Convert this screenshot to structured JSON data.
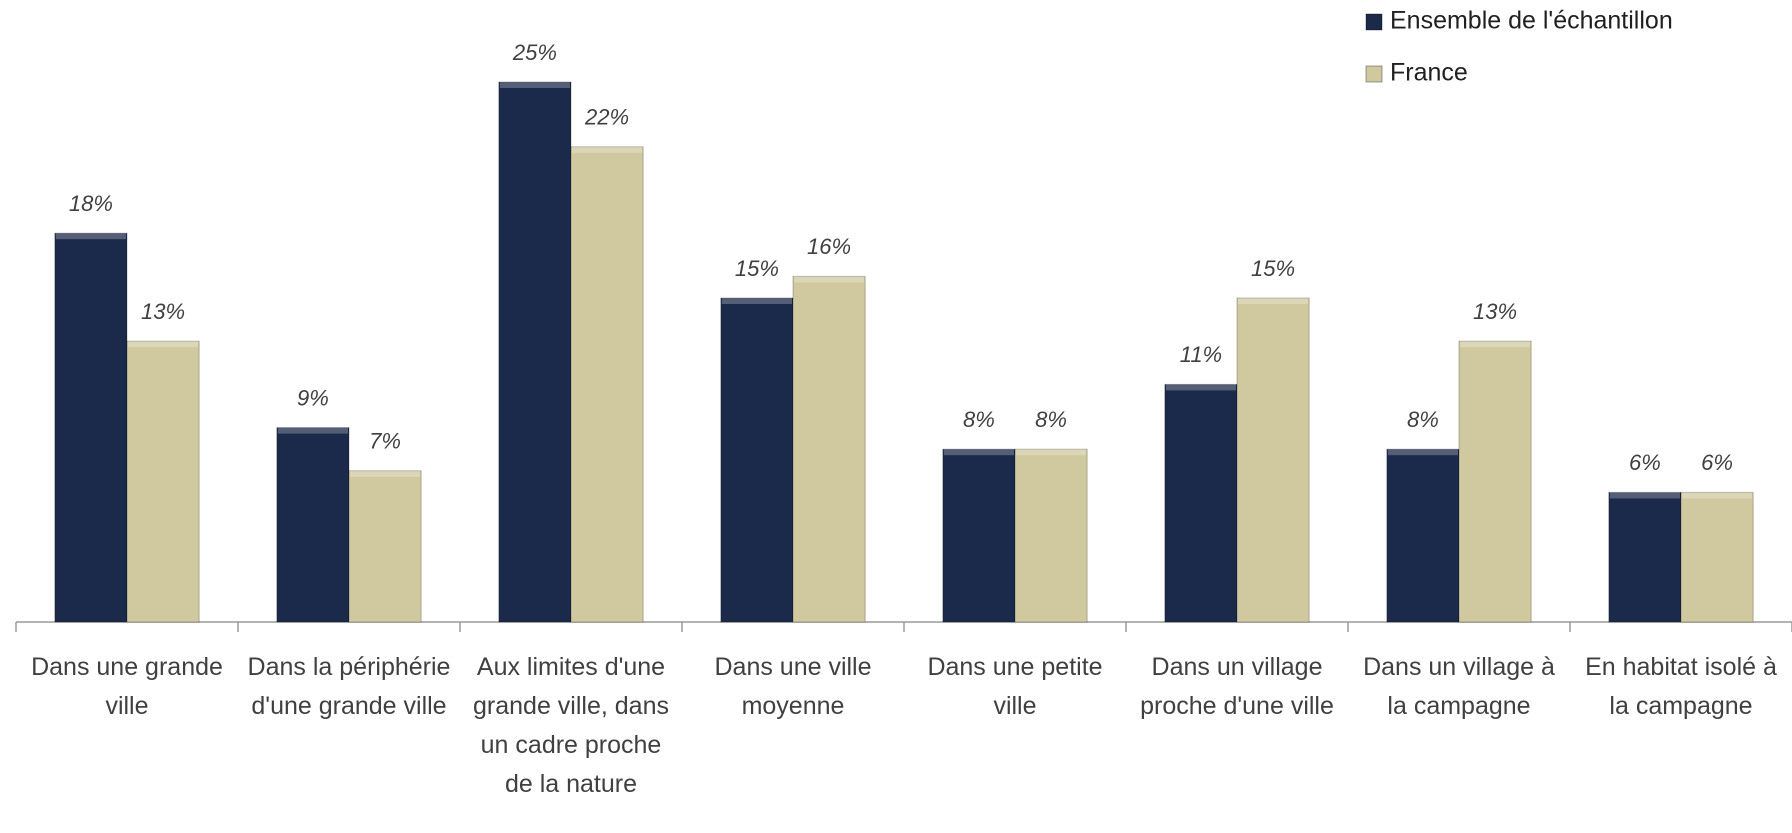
{
  "chart_data": {
    "type": "bar",
    "categories": [
      "Dans une grande ville",
      "Dans la périphérie d'une grande ville",
      "Aux limites d'une grande ville, dans un cadre proche de la nature",
      "Dans une ville moyenne",
      "Dans une petite ville",
      "Dans un village proche d'une ville",
      "Dans un village à la campagne",
      "En habitat isolé à la campagne"
    ],
    "series": [
      {
        "name": "Ensemble de l'échantillon",
        "color": "#1b2a4a",
        "values": [
          18,
          9,
          25,
          15,
          8,
          11,
          8,
          6
        ],
        "value_labels": [
          "18%",
          "9%",
          "25%",
          "15%",
          "8%",
          "11%",
          "8%",
          "6%"
        ]
      },
      {
        "name": "France",
        "color": "#d0c9a0",
        "values": [
          13,
          7,
          22,
          16,
          8,
          15,
          13,
          6
        ],
        "value_labels": [
          "13%",
          "7%",
          "22%",
          "16%",
          "8%",
          "15%",
          "13%",
          "6%"
        ]
      }
    ],
    "ylim": [
      0,
      25
    ],
    "legend": "top-right"
  }
}
